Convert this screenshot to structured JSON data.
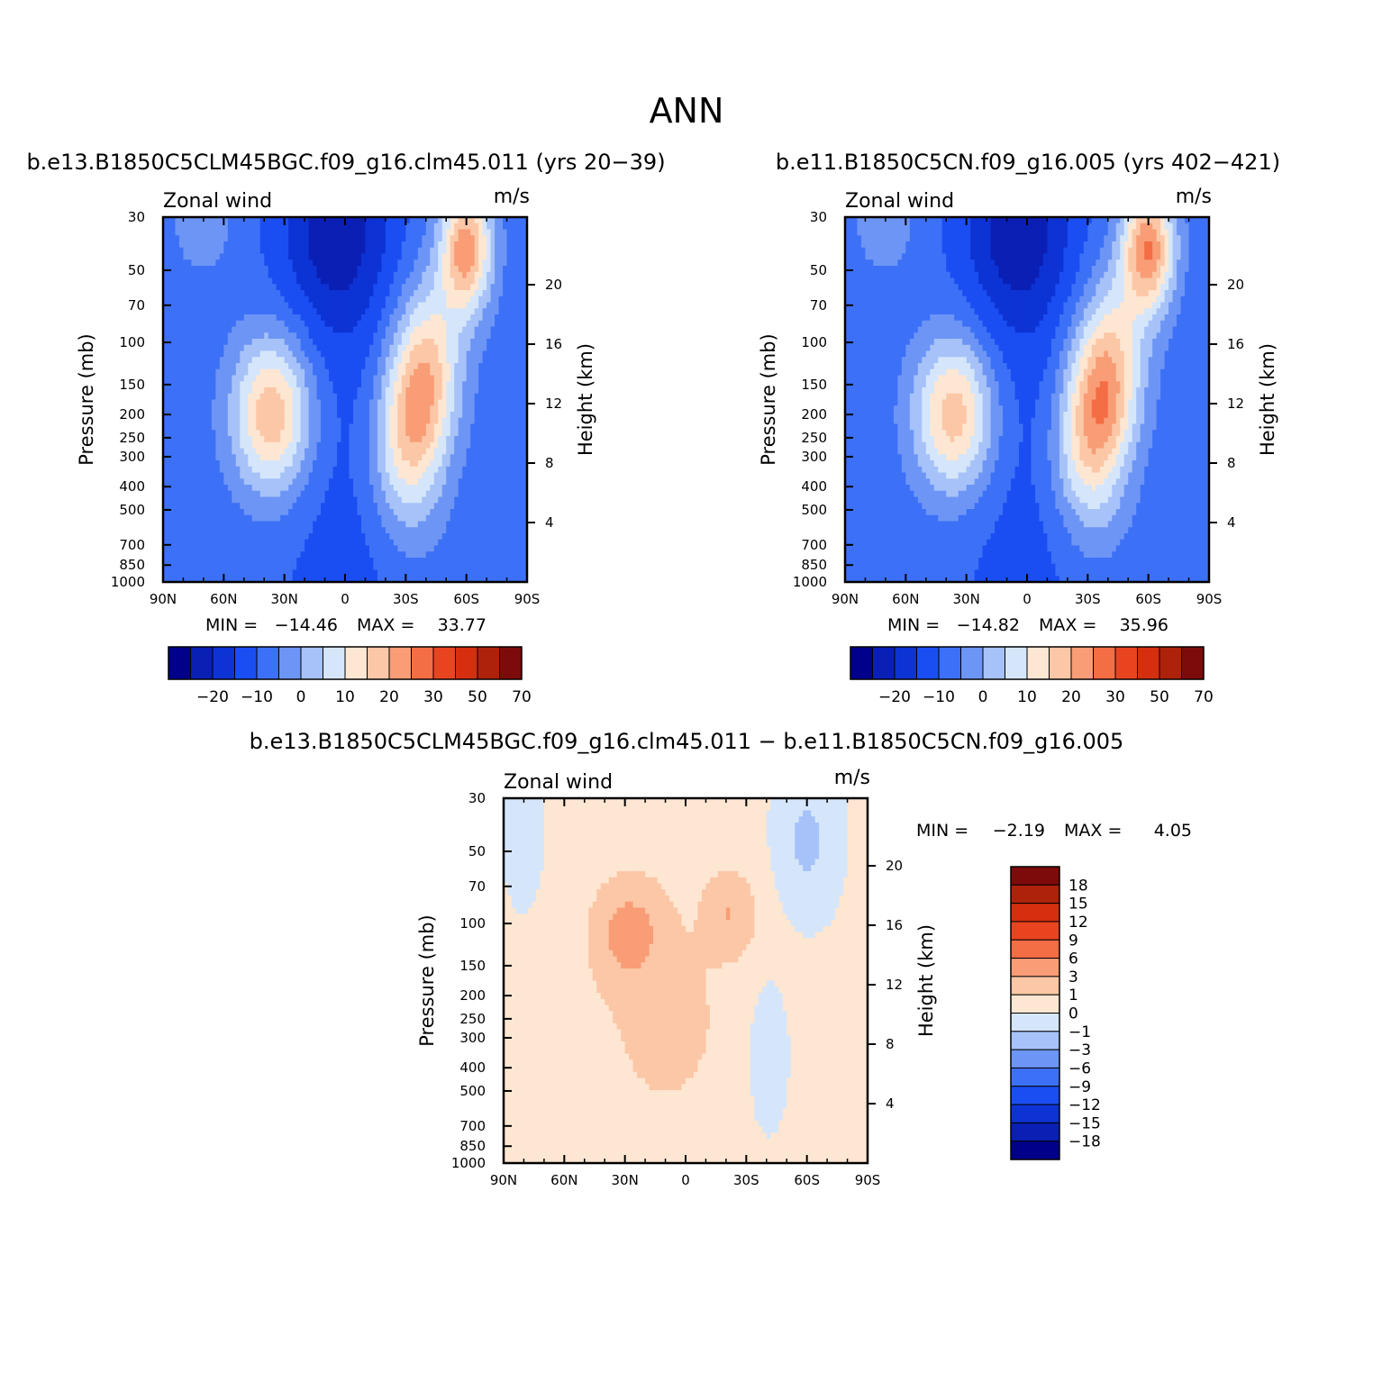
{
  "chart_data": {
    "title": "ANN",
    "colors_abs": [
      "#00008b",
      "#0a1fb4",
      "#0d33d4",
      "#1a4ef2",
      "#3c70f7",
      "#6d95f5",
      "#a6c2f8",
      "#d5e6fb",
      "#fde6d2",
      "#fbc7a6",
      "#f89d76",
      "#f36d45",
      "#e94420",
      "#d52f10",
      "#ae220b",
      "#7e0b0b"
    ],
    "colors_diff": [
      "#00008b",
      "#0a1fb4",
      "#0d33d4",
      "#1a4ef2",
      "#3c70f7",
      "#6d95f5",
      "#a6c2f8",
      "#d5e6fb",
      "#fde6d2",
      "#fbc7a6",
      "#f89d76",
      "#f36d45",
      "#e94420",
      "#d52f10",
      "#ae220b",
      "#7e0b0b"
    ],
    "panels": [
      {
        "id": "case1",
        "type": "heatmap",
        "title": "b.e13.B1850C5CLM45BGC.f09_g16.clm45.011 (yrs 20−39)",
        "left_label": "Zonal wind",
        "right_label": "m/s",
        "xlabel": "",
        "ylabel": "Pressure (mb)",
        "y2label": "Height (km)",
        "xticks": [
          "90N",
          "60N",
          "30N",
          "0",
          "30S",
          "60S",
          "90S"
        ],
        "yticks": [
          "30",
          "50",
          "70",
          "100",
          "150",
          "200",
          "250",
          "300",
          "400",
          "500",
          "700",
          "850",
          "1000"
        ],
        "y2ticks": [
          "20",
          "16",
          "12",
          "8",
          "4"
        ],
        "min_label": "MIN =",
        "min_value": "−14.46",
        "max_label": "MAX =",
        "max_value": "33.77",
        "min": -14.46,
        "max": 33.77,
        "colorbar_ticks": [
          "−20",
          "−10",
          "0",
          "10",
          "20",
          "30",
          "50",
          "70"
        ],
        "jets": [
          {
            "lat": 36,
            "p": 200,
            "peak": 28
          },
          {
            "lat": -32,
            "p": 180,
            "peak": 33.77
          },
          {
            "lat": -60,
            "p": 40,
            "peak": 30
          }
        ]
      },
      {
        "id": "case2",
        "type": "heatmap",
        "title": "b.e11.B1850C5CN.f09_g16.005 (yrs 402−421)",
        "left_label": "Zonal wind",
        "right_label": "m/s",
        "xlabel": "",
        "ylabel": "Pressure (mb)",
        "y2label": "Height (km)",
        "xticks": [
          "90N",
          "60N",
          "30N",
          "0",
          "30S",
          "60S",
          "90S"
        ],
        "yticks": [
          "30",
          "50",
          "70",
          "100",
          "150",
          "200",
          "250",
          "300",
          "400",
          "500",
          "700",
          "850",
          "1000"
        ],
        "y2ticks": [
          "20",
          "16",
          "12",
          "8",
          "4"
        ],
        "min_label": "MIN =",
        "min_value": "−14.82",
        "max_label": "MAX =",
        "max_value": "35.96",
        "min": -14.82,
        "max": 35.96,
        "colorbar_ticks": [
          "−20",
          "−10",
          "0",
          "10",
          "20",
          "30",
          "50",
          "70"
        ],
        "jets": [
          {
            "lat": 36,
            "p": 200,
            "peak": 27
          },
          {
            "lat": -32,
            "p": 180,
            "peak": 35.96
          },
          {
            "lat": -60,
            "p": 40,
            "peak": 32
          }
        ]
      },
      {
        "id": "diff",
        "type": "heatmap",
        "title": "b.e13.B1850C5CLM45BGC.f09_g16.clm45.011 − b.e11.B1850C5CN.f09_g16.005",
        "left_label": "Zonal wind",
        "right_label": "m/s",
        "xlabel": "",
        "ylabel": "Pressure (mb)",
        "y2label": "Height (km)",
        "xticks": [
          "90N",
          "60N",
          "30N",
          "0",
          "30S",
          "60S",
          "90S"
        ],
        "yticks": [
          "30",
          "50",
          "70",
          "100",
          "150",
          "200",
          "250",
          "300",
          "400",
          "500",
          "700",
          "850",
          "1000"
        ],
        "y2ticks": [
          "20",
          "16",
          "12",
          "8",
          "4"
        ],
        "min_label": "MIN =",
        "min_value": "−2.19",
        "max_label": "MAX =",
        "max_value": "4.05",
        "min": -2.19,
        "max": 4.05,
        "colorbar_ticks": [
          "18",
          "15",
          "12",
          "9",
          "6",
          "3",
          "1",
          "0",
          "−1",
          "−3",
          "−6",
          "−9",
          "−12",
          "−15",
          "−18"
        ]
      }
    ]
  }
}
